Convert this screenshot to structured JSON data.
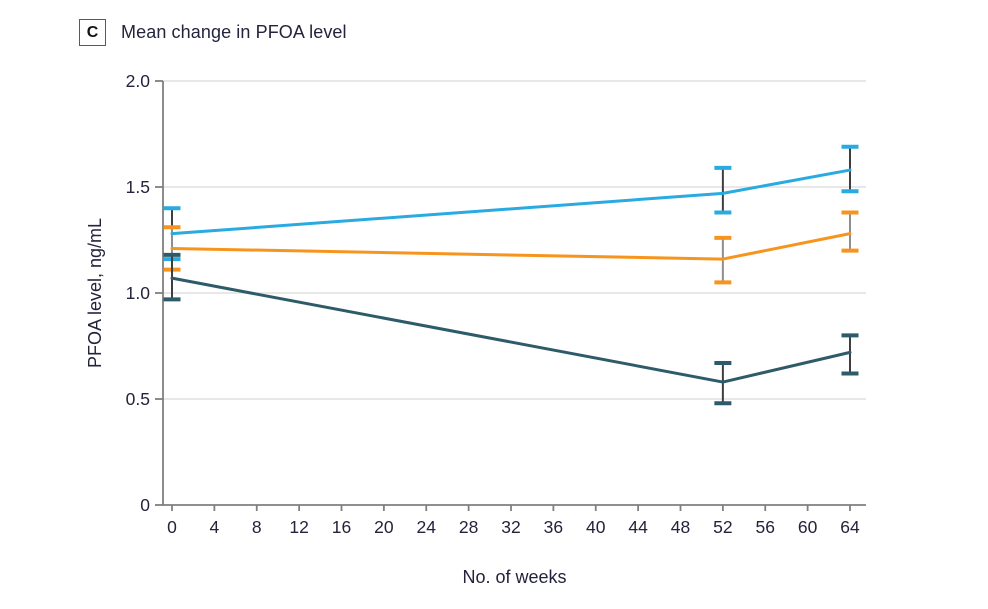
{
  "panel": {
    "label": "C",
    "title": "Mean change in PFOA level"
  },
  "chart_data": {
    "type": "line",
    "title": "Mean change in PFOA level",
    "xlabel": "No. of weeks",
    "ylabel": "PFOA level, ng/mL",
    "x": [
      0,
      52,
      64
    ],
    "xticks": [
      0,
      4,
      8,
      12,
      16,
      20,
      24,
      28,
      32,
      36,
      40,
      44,
      48,
      52,
      56,
      60,
      64
    ],
    "xtick_labels": [
      "0",
      "4",
      "8",
      "12",
      "16",
      "20",
      "24",
      "28",
      "32",
      "36",
      "40",
      "44",
      "48",
      "52",
      "56",
      "60",
      "64"
    ],
    "yticks": [
      0,
      0.5,
      1.0,
      1.5,
      2.0
    ],
    "ytick_labels": [
      "0",
      "0.5",
      "1.0",
      "1.5",
      "2.0"
    ],
    "xlim": [
      0,
      65.5
    ],
    "ylim": [
      0,
      2.0
    ],
    "grid": "horizontal gridlines at labeled y ticks",
    "legend": "none visible",
    "error_bars": true,
    "series": [
      {
        "name": "blue",
        "color": "#29abe2",
        "error_stem_color": "#3f3f3f",
        "values": [
          1.28,
          1.47,
          1.58
        ],
        "ci_low": [
          1.16,
          1.38,
          1.48
        ],
        "ci_high": [
          1.4,
          1.59,
          1.69
        ]
      },
      {
        "name": "orange",
        "color": "#f7941d",
        "error_stem_color": "#8f8f8f",
        "values": [
          1.21,
          1.16,
          1.28
        ],
        "ci_low": [
          1.11,
          1.05,
          1.2
        ],
        "ci_high": [
          1.31,
          1.26,
          1.38
        ]
      },
      {
        "name": "dark-teal",
        "color": "#2e5b69",
        "error_stem_color": "#3f3f3f",
        "values": [
          1.07,
          0.58,
          0.72
        ],
        "ci_low": [
          0.97,
          0.48,
          0.62
        ],
        "ci_high": [
          1.18,
          0.67,
          0.8
        ]
      }
    ],
    "colors": {
      "axis": "#7f7f7f",
      "grid": "#e8e8e8",
      "text": "#23233c",
      "background": "#ffffff"
    }
  }
}
